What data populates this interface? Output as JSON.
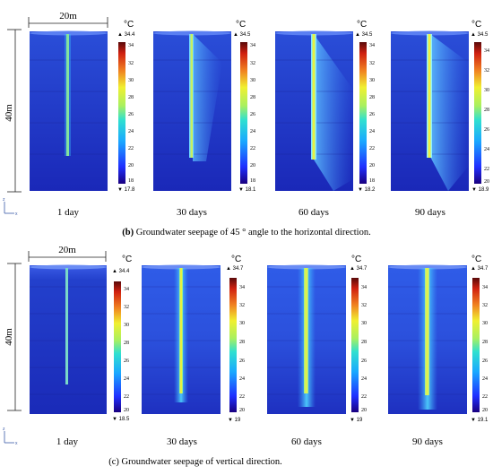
{
  "dimensions": {
    "width_label": "20m",
    "height_label": "40m"
  },
  "colorbar": {
    "unit": "°C",
    "ticks": [
      "34",
      "32",
      "30",
      "28",
      "26",
      "24",
      "22",
      "20",
      "18"
    ],
    "ticks_b4": [
      "34",
      "32",
      "30",
      "28",
      "26",
      "24",
      "22",
      "20"
    ],
    "ticks_c": [
      "34",
      "32",
      "30",
      "28",
      "26",
      "24",
      "22",
      "20"
    ]
  },
  "axes_triad": {
    "z": "z",
    "x": "x"
  },
  "panel_b": {
    "caption_prefix": "(b)",
    "caption": " Groundwater seepage of 45 ° angle to the horizontal direction.",
    "days": [
      "1 day",
      "30 days",
      "60 days",
      "90 days"
    ],
    "max": [
      "▲ 34.4",
      "▲ 34.5",
      "▲ 34.5",
      "▲ 34.5"
    ],
    "min": [
      "▼ 17.8",
      "▼ 18.1",
      "▼ 18.2",
      "▼ 18.9"
    ]
  },
  "panel_c": {
    "caption": "(c) Groundwater seepage of vertical direction.",
    "days": [
      "1 day",
      "30 days",
      "60 days",
      "90 days"
    ],
    "max": [
      "▲ 34.4",
      "▲ 34.7",
      "▲ 34.7",
      "▲ 34.7"
    ],
    "min": [
      "▼ 18.5",
      "▼ 19",
      "▼ 19",
      "▼ 19.1"
    ]
  },
  "colors": {
    "field_deep": "#1a2fc4",
    "field_mid": "#2a52e0",
    "pipe": "#a9f26a"
  }
}
